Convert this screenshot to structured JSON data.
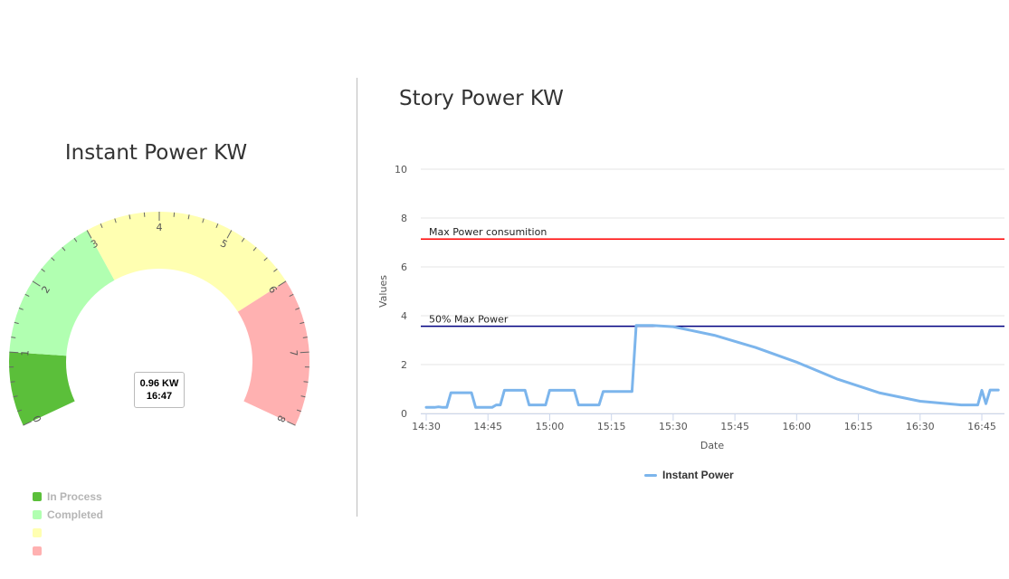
{
  "gauge": {
    "title": "Instant Power KW",
    "tooltip": {
      "value": "0.96 KW",
      "time": "16:47"
    },
    "legend": [
      {
        "label": "In Process",
        "color": "#5bbf3a"
      },
      {
        "label": "Completed",
        "color": "#b1ffb1"
      },
      {
        "label": "",
        "color": "#ffffb1"
      },
      {
        "label": "",
        "color": "#ffb1b1"
      }
    ]
  },
  "line": {
    "title": "Story Power KW",
    "legend_label": "Instant Power"
  },
  "chart_data": [
    {
      "type": "gauge",
      "title": "Instant Power KW",
      "min": 0,
      "max": 8,
      "tick_labels": [
        "0",
        "1",
        "2",
        "3",
        "4",
        "5",
        "6",
        "7",
        "8"
      ],
      "value": 0.96,
      "bands": [
        {
          "from": 0,
          "to": 1,
          "color": "#5bbf3a",
          "name": "In Process"
        },
        {
          "from": 1,
          "to": 3,
          "color": "#b1ffb1",
          "name": "Completed"
        },
        {
          "from": 3,
          "to": 6,
          "color": "#ffffb1",
          "name": ""
        },
        {
          "from": 6,
          "to": 8,
          "color": "#ffb1b1",
          "name": ""
        }
      ]
    },
    {
      "type": "line",
      "title": "Story Power KW",
      "xlabel": "Date",
      "ylabel": "Values",
      "ylim": [
        0,
        10
      ],
      "yticks": [
        "0",
        "2",
        "4",
        "6",
        "8",
        "10"
      ],
      "xticks": [
        "14:30",
        "14:45",
        "15:00",
        "15:15",
        "15:30",
        "15:45",
        "16:00",
        "16:15",
        "16:30",
        "16:45"
      ],
      "xlim": [
        "14:30",
        "16:49"
      ],
      "grid": true,
      "legend_position": "bottom",
      "plot_lines": [
        {
          "label": "Max Power consumition",
          "value": 7.14,
          "color": "#ff0000"
        },
        {
          "label": "50% Max Power",
          "value": 3.57,
          "color": "#000080"
        }
      ],
      "series": [
        {
          "name": "Instant Power",
          "color": "#7cb5ec",
          "points": [
            [
              "14:30",
              0.25
            ],
            [
              "14:32",
              0.25
            ],
            [
              "14:33",
              0.27
            ],
            [
              "14:34",
              0.25
            ],
            [
              "14:35",
              0.25
            ],
            [
              "14:36",
              0.85
            ],
            [
              "14:41",
              0.85
            ],
            [
              "14:42",
              0.25
            ],
            [
              "14:46",
              0.25
            ],
            [
              "14:47",
              0.35
            ],
            [
              "14:48",
              0.35
            ],
            [
              "14:49",
              0.95
            ],
            [
              "14:54",
              0.95
            ],
            [
              "14:55",
              0.35
            ],
            [
              "14:59",
              0.35
            ],
            [
              "15:00",
              0.95
            ],
            [
              "15:06",
              0.95
            ],
            [
              "15:07",
              0.35
            ],
            [
              "15:12",
              0.35
            ],
            [
              "15:13",
              0.9
            ],
            [
              "15:20",
              0.9
            ],
            [
              "15:21",
              3.6
            ],
            [
              "15:25",
              3.6
            ],
            [
              "15:30",
              3.55
            ],
            [
              "15:40",
              3.2
            ],
            [
              "15:50",
              2.7
            ],
            [
              "16:00",
              2.1
            ],
            [
              "16:10",
              1.4
            ],
            [
              "16:20",
              0.85
            ],
            [
              "16:30",
              0.5
            ],
            [
              "16:40",
              0.35
            ],
            [
              "16:44",
              0.35
            ],
            [
              "16:45",
              0.95
            ],
            [
              "16:46",
              0.4
            ],
            [
              "16:47",
              0.96
            ],
            [
              "16:49",
              0.96
            ]
          ]
        }
      ]
    }
  ]
}
